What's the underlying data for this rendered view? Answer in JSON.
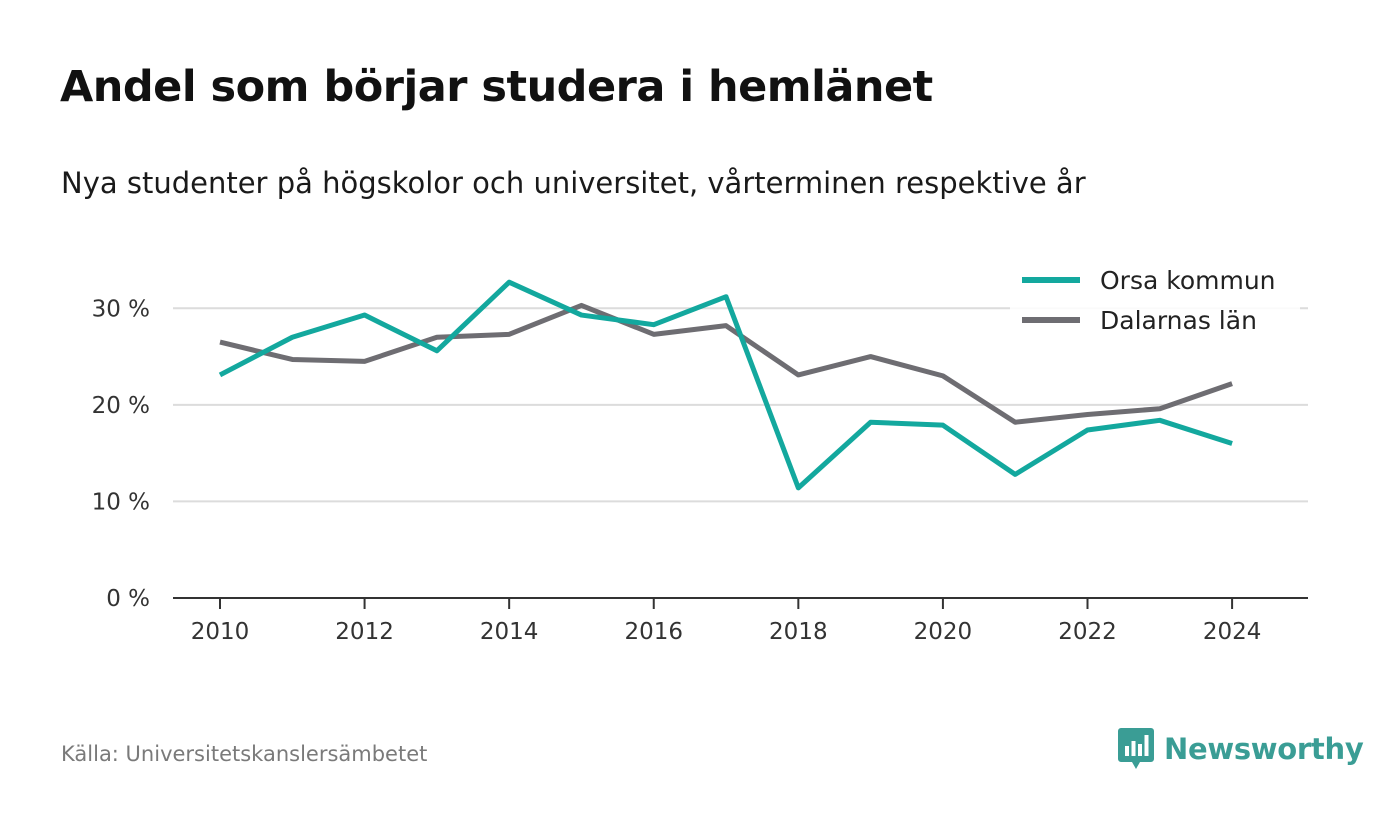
{
  "title": "Andel som börjar studera i hemlänet",
  "subtitle": "Nya studenter på högskolor och universitet, vårterminen respektive år",
  "source": "Källa: Universitetskanslersämbetet",
  "brand": {
    "name": "Newsworthy",
    "color": "#3a9d95",
    "icon": "newsworthy-logo-icon"
  },
  "chart_data": {
    "type": "line",
    "x": [
      2010,
      2011,
      2012,
      2013,
      2014,
      2015,
      2016,
      2017,
      2018,
      2019,
      2020,
      2021,
      2022,
      2023,
      2024
    ],
    "xticks": [
      "2010",
      "2012",
      "2014",
      "2016",
      "2018",
      "2020",
      "2022",
      "2024"
    ],
    "yticks": [
      "0 %",
      "10 %",
      "20 %",
      "30 %"
    ],
    "ylim": [
      0,
      35
    ],
    "xlim": [
      2009.35,
      2025.05
    ],
    "grid": true,
    "legend_position": "top-right",
    "series": [
      {
        "name": "Orsa kommun",
        "color": "#13a89e",
        "values": [
          23.1,
          27.0,
          29.3,
          25.6,
          32.7,
          29.3,
          28.3,
          31.2,
          11.4,
          18.2,
          17.9,
          12.8,
          17.4,
          18.4,
          16.0
        ]
      },
      {
        "name": "Dalarnas län",
        "color": "#6e6d72",
        "values": [
          26.5,
          24.7,
          24.5,
          27.0,
          27.3,
          30.3,
          27.3,
          28.2,
          23.1,
          25.0,
          23.0,
          18.2,
          19.0,
          19.6,
          22.2
        ]
      }
    ]
  }
}
